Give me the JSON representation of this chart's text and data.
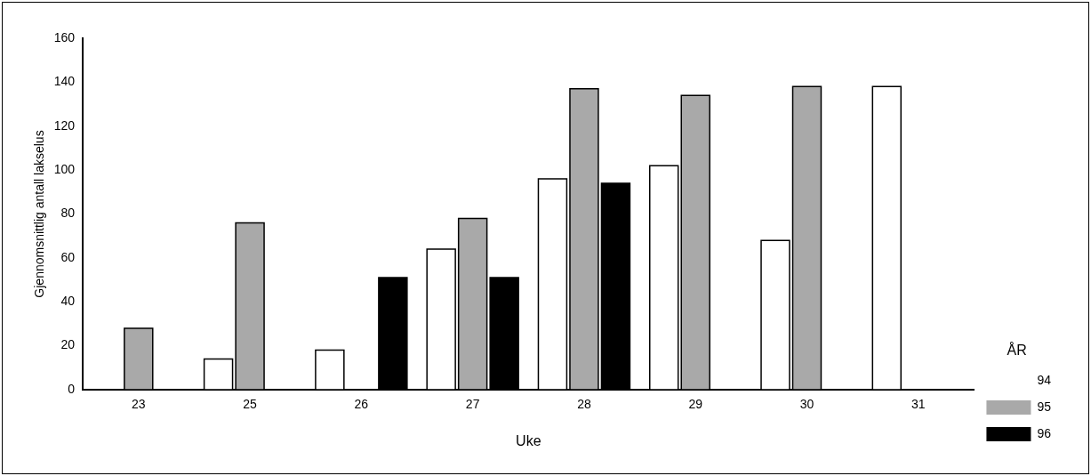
{
  "chart_data": {
    "type": "bar",
    "xlabel": "Uke",
    "ylabel": "Gjennomsnittlig antall lakselus",
    "legend_title": "ÅR",
    "legend": "right",
    "grid": false,
    "categories": [
      "23",
      "25",
      "26",
      "27",
      "28",
      "29",
      "30",
      "31"
    ],
    "ylim": [
      0,
      160
    ],
    "yticks": [
      0,
      20,
      40,
      60,
      80,
      100,
      120,
      140,
      160
    ],
    "series": [
      {
        "name": "94",
        "color": "#ffffff",
        "values": [
          null,
          14,
          18,
          64,
          96,
          102,
          68,
          138
        ]
      },
      {
        "name": "95",
        "color": "#a9a9a9",
        "values": [
          28,
          76,
          null,
          78,
          137,
          134,
          138,
          null
        ]
      },
      {
        "name": "96",
        "color": "#000000",
        "values": [
          null,
          null,
          51,
          51,
          94,
          null,
          null,
          null
        ]
      }
    ]
  }
}
